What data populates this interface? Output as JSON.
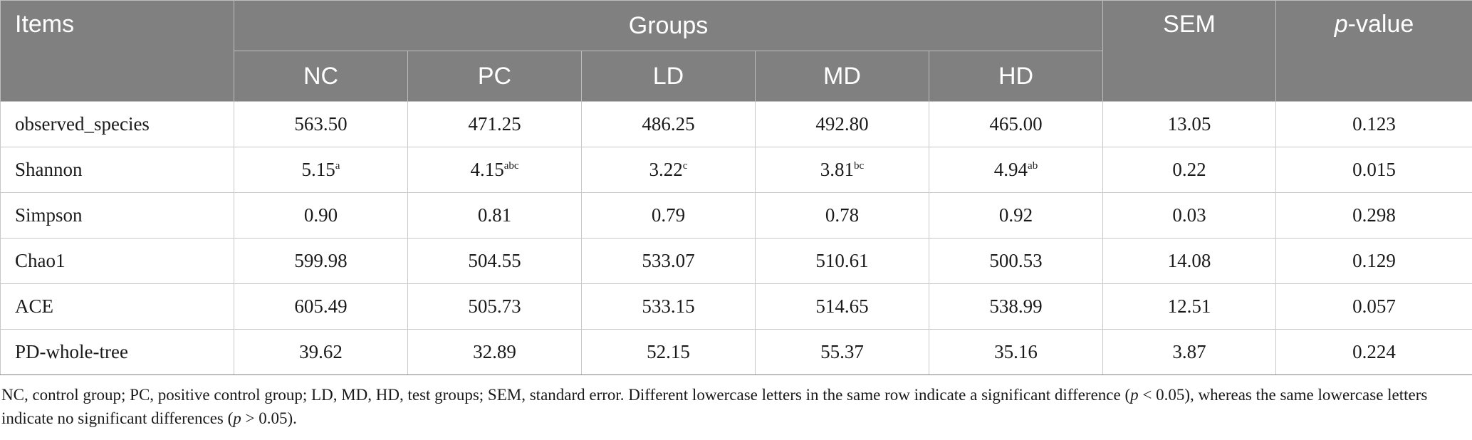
{
  "table": {
    "header": {
      "items": "Items",
      "groups": "Groups",
      "sem": "SEM",
      "p_prefix": "p",
      "p_suffix": "-value",
      "groups_sub": [
        "NC",
        "PC",
        "LD",
        "MD",
        "HD"
      ]
    },
    "rows": [
      {
        "label": "observed_species",
        "cells": [
          {
            "v": "563.50",
            "s": ""
          },
          {
            "v": "471.25",
            "s": ""
          },
          {
            "v": "486.25",
            "s": ""
          },
          {
            "v": "492.80",
            "s": ""
          },
          {
            "v": "465.00",
            "s": ""
          }
        ],
        "sem": "13.05",
        "p": "0.123"
      },
      {
        "label": "Shannon",
        "cells": [
          {
            "v": "5.15",
            "s": "a"
          },
          {
            "v": "4.15",
            "s": "abc"
          },
          {
            "v": "3.22",
            "s": "c"
          },
          {
            "v": "3.81",
            "s": "bc"
          },
          {
            "v": "4.94",
            "s": "ab"
          }
        ],
        "sem": "0.22",
        "p": "0.015"
      },
      {
        "label": "Simpson",
        "cells": [
          {
            "v": "0.90",
            "s": ""
          },
          {
            "v": "0.81",
            "s": ""
          },
          {
            "v": "0.79",
            "s": ""
          },
          {
            "v": "0.78",
            "s": ""
          },
          {
            "v": "0.92",
            "s": ""
          }
        ],
        "sem": "0.03",
        "p": "0.298"
      },
      {
        "label": "Chao1",
        "cells": [
          {
            "v": "599.98",
            "s": ""
          },
          {
            "v": "504.55",
            "s": ""
          },
          {
            "v": "533.07",
            "s": ""
          },
          {
            "v": "510.61",
            "s": ""
          },
          {
            "v": "500.53",
            "s": ""
          }
        ],
        "sem": "14.08",
        "p": "0.129"
      },
      {
        "label": "ACE",
        "cells": [
          {
            "v": "605.49",
            "s": ""
          },
          {
            "v": "505.73",
            "s": ""
          },
          {
            "v": "533.15",
            "s": ""
          },
          {
            "v": "514.65",
            "s": ""
          },
          {
            "v": "538.99",
            "s": ""
          }
        ],
        "sem": "12.51",
        "p": "0.057"
      },
      {
        "label": "PD-whole-tree",
        "cells": [
          {
            "v": "39.62",
            "s": ""
          },
          {
            "v": "32.89",
            "s": ""
          },
          {
            "v": "52.15",
            "s": ""
          },
          {
            "v": "55.37",
            "s": ""
          },
          {
            "v": "35.16",
            "s": ""
          }
        ],
        "sem": "3.87",
        "p": "0.224"
      }
    ]
  },
  "footnote": {
    "part1": "NC, control group; PC, positive control group; LD, MD, HD, test groups; SEM, standard error. Different lowercase letters in the same row indicate a significant difference (",
    "p1": "p",
    "part2": " < 0.05), whereas the same lowercase letters indicate no significant differences (",
    "p2": "p",
    "part3": " > 0.05)."
  },
  "colors": {
    "header_bg": "#808080",
    "header_text": "#ffffff",
    "grid": "#c8c8c8"
  }
}
